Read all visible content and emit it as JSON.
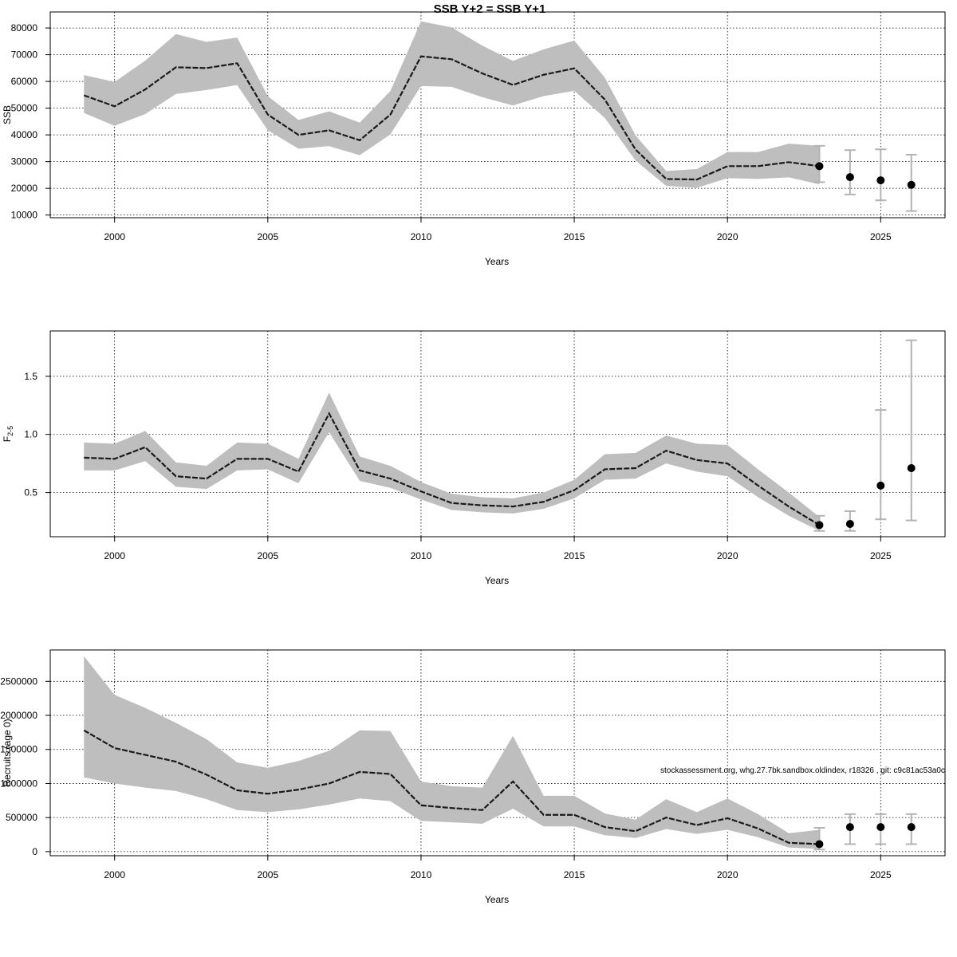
{
  "title": "SSB Y+2 = SSB Y+1",
  "footnote": "stockassessment.org, whg.27.7bk.sandbox.oldindex, r18326 , git: c9c81ac53a0c",
  "colors": {
    "band": "#bebebe",
    "line": "#1a1a1a",
    "point": "#000000",
    "error_bar": "#b3b3b3"
  },
  "chart_data": [
    {
      "type": "line",
      "xlabel": "Years",
      "ylabel": "SSB",
      "xlim": [
        1997.9,
        2027.1
      ],
      "ylim": [
        9000,
        86000
      ],
      "x_ticks": [
        2000,
        2005,
        2010,
        2015,
        2020,
        2025
      ],
      "y_ticks": [
        10000,
        20000,
        30000,
        40000,
        50000,
        60000,
        70000,
        80000
      ],
      "y_tick_labels": [
        "10000",
        "20000",
        "30000",
        "40000",
        "50000",
        "60000",
        "70000",
        "80000"
      ],
      "grid": true,
      "estimate": {
        "x": [
          1999,
          2000,
          2001,
          2002,
          2003,
          2004,
          2005,
          2006,
          2007,
          2008,
          2009,
          2010,
          2011,
          2012,
          2013,
          2014,
          2015,
          2016,
          2017,
          2018,
          2019,
          2020,
          2021,
          2022,
          2023
        ],
        "y": [
          54800,
          50700,
          57000,
          65300,
          65000,
          66800,
          47600,
          40000,
          41700,
          38000,
          47600,
          69400,
          68300,
          63000,
          58700,
          62500,
          64900,
          53200,
          34500,
          23500,
          23300,
          28300,
          28300,
          29800,
          28300
        ],
        "lower": [
          48200,
          43400,
          47800,
          55300,
          56800,
          58600,
          41700,
          34800,
          35800,
          32400,
          40200,
          58300,
          58000,
          54100,
          51000,
          54500,
          56500,
          46300,
          30400,
          20900,
          20200,
          23800,
          23500,
          24100,
          21500
        ],
        "upper": [
          62400,
          59800,
          67800,
          77700,
          74800,
          76400,
          54500,
          45600,
          48800,
          44600,
          56400,
          82500,
          80200,
          73400,
          67700,
          72000,
          75300,
          61400,
          39800,
          26500,
          27200,
          33600,
          33600,
          36700,
          35900
        ]
      },
      "forecast": {
        "x": [
          2023,
          2024,
          2025,
          2026
        ],
        "y": [
          28300,
          24200,
          23000,
          21300
        ],
        "lower": [
          22300,
          17700,
          15500,
          11500
        ],
        "upper": [
          35900,
          34300,
          34600,
          32600
        ]
      }
    },
    {
      "type": "line",
      "xlabel": "Years",
      "ylabel": "F",
      "ylabel_subscript": "2-5",
      "xlim": [
        1997.9,
        2027.1
      ],
      "ylim": [
        0.12,
        1.89
      ],
      "x_ticks": [
        2000,
        2005,
        2010,
        2015,
        2020,
        2025
      ],
      "y_ticks": [
        0.5,
        1.0,
        1.5
      ],
      "y_tick_labels": [
        "0.5",
        "1.0",
        "1.5"
      ],
      "grid": true,
      "estimate": {
        "x": [
          1999,
          2000,
          2001,
          2002,
          2003,
          2004,
          2005,
          2006,
          2007,
          2008,
          2009,
          2010,
          2011,
          2012,
          2013,
          2014,
          2015,
          2016,
          2017,
          2018,
          2019,
          2020,
          2021,
          2022,
          2023
        ],
        "y": [
          0.8,
          0.79,
          0.89,
          0.64,
          0.62,
          0.79,
          0.79,
          0.68,
          1.18,
          0.69,
          0.62,
          0.51,
          0.41,
          0.39,
          0.38,
          0.42,
          0.52,
          0.7,
          0.71,
          0.86,
          0.78,
          0.75,
          0.56,
          0.38,
          0.22
        ],
        "lower": [
          0.69,
          0.69,
          0.77,
          0.55,
          0.53,
          0.69,
          0.7,
          0.58,
          1.02,
          0.6,
          0.54,
          0.44,
          0.35,
          0.33,
          0.32,
          0.36,
          0.45,
          0.61,
          0.62,
          0.75,
          0.68,
          0.64,
          0.46,
          0.3,
          0.17
        ],
        "upper": [
          0.93,
          0.92,
          1.03,
          0.76,
          0.73,
          0.93,
          0.92,
          0.79,
          1.36,
          0.81,
          0.73,
          0.59,
          0.49,
          0.46,
          0.45,
          0.5,
          0.61,
          0.83,
          0.84,
          0.99,
          0.92,
          0.91,
          0.7,
          0.5,
          0.29
        ]
      },
      "forecast": {
        "x": [
          2023,
          2024,
          2025,
          2026
        ],
        "y": [
          0.22,
          0.23,
          0.56,
          0.71
        ],
        "lower": [
          0.17,
          0.17,
          0.27,
          0.26
        ],
        "upper": [
          0.3,
          0.34,
          1.21,
          1.81
        ]
      }
    },
    {
      "type": "line",
      "xlabel": "Years",
      "ylabel": "Recruits (age 0)",
      "xlim": [
        1997.9,
        2027.1
      ],
      "ylim": [
        -60000,
        2960000
      ],
      "x_ticks": [
        2000,
        2005,
        2010,
        2015,
        2020,
        2025
      ],
      "y_ticks": [
        0,
        500000,
        1000000,
        1500000,
        2000000,
        2500000
      ],
      "y_tick_labels": [
        "0",
        "500000",
        "1000000",
        "1500000",
        "2000000",
        "2500000"
      ],
      "grid": true,
      "estimate": {
        "x": [
          1999,
          2000,
          2001,
          2002,
          2003,
          2004,
          2005,
          2006,
          2007,
          2008,
          2009,
          2010,
          2011,
          2012,
          2013,
          2014,
          2015,
          2016,
          2017,
          2018,
          2019,
          2020,
          2021,
          2022,
          2023
        ],
        "y": [
          1780000,
          1520000,
          1420000,
          1320000,
          1130000,
          900000,
          850000,
          910000,
          1000000,
          1170000,
          1140000,
          680000,
          640000,
          610000,
          1030000,
          540000,
          540000,
          360000,
          300000,
          500000,
          390000,
          490000,
          340000,
          130000,
          110000
        ],
        "lower": [
          1090000,
          1000000,
          940000,
          890000,
          770000,
          610000,
          580000,
          620000,
          690000,
          780000,
          740000,
          450000,
          430000,
          410000,
          630000,
          370000,
          370000,
          240000,
          200000,
          330000,
          260000,
          320000,
          210000,
          60000,
          40000
        ],
        "upper": [
          2870000,
          2300000,
          2110000,
          1890000,
          1650000,
          1310000,
          1230000,
          1330000,
          1480000,
          1780000,
          1770000,
          1030000,
          960000,
          940000,
          1700000,
          820000,
          820000,
          560000,
          470000,
          770000,
          580000,
          780000,
          550000,
          270000,
          320000
        ]
      },
      "forecast": {
        "x": [
          2023,
          2024,
          2025,
          2026
        ],
        "y": [
          110000,
          360000,
          360000,
          360000
        ],
        "lower": [
          30000,
          110000,
          110000,
          110000
        ],
        "upper": [
          350000,
          550000,
          550000,
          550000
        ]
      }
    }
  ]
}
